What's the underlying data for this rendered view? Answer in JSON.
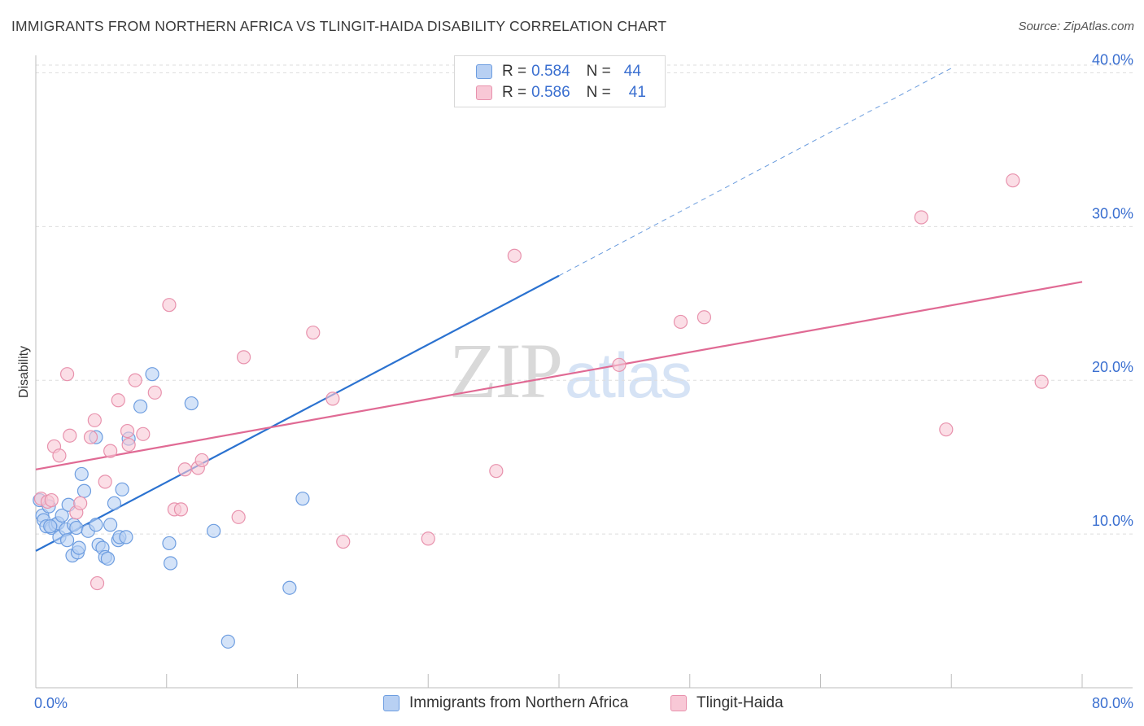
{
  "header": {
    "title": "IMMIGRANTS FROM NORTHERN AFRICA VS TLINGIT-HAIDA DISABILITY CORRELATION CHART",
    "source": "Source: ZipAtlas.com"
  },
  "watermark": {
    "zip": "ZIP",
    "atlas": "atlas"
  },
  "colors": {
    "blue_fill": "#b8d0f3",
    "blue_stroke": "#6d9de0",
    "blue_line": "#2b72d0",
    "pink_fill": "#f8c8d6",
    "pink_stroke": "#e892ad",
    "pink_line": "#e06a94",
    "axis_text": "#3a6fd0",
    "grid": "#dedede"
  },
  "legend": {
    "rows": [
      {
        "r_label": "R =",
        "r_value": "0.584",
        "n_label": "N =",
        "n_value": "44",
        "series": "blue"
      },
      {
        "r_label": "R =",
        "r_value": "0.586",
        "n_label": "N =",
        "n_value": "41",
        "series": "pink"
      }
    ]
  },
  "chart_data": {
    "type": "scatter",
    "title": "IMMIGRANTS FROM NORTHERN AFRICA VS TLINGIT-HAIDA DISABILITY CORRELATION CHART",
    "xlabel": "",
    "ylabel": "Disability",
    "xlim": [
      0,
      80
    ],
    "ylim": [
      0,
      40.5
    ],
    "x_tick_labels": [
      "0.0%",
      "80.0%"
    ],
    "y_ticks": [
      10,
      20,
      30,
      40
    ],
    "y_tick_labels": [
      "10.0%",
      "20.0%",
      "30.0%",
      "40.0%"
    ],
    "legend_position": "top-center",
    "series": [
      {
        "name": "Immigrants from Northern Africa",
        "color": "blue",
        "points": [
          [
            0.3,
            12.2
          ],
          [
            0.5,
            11.2
          ],
          [
            0.6,
            10.9
          ],
          [
            0.8,
            10.5
          ],
          [
            1.0,
            11.8
          ],
          [
            1.2,
            10.4
          ],
          [
            1.5,
            10.6
          ],
          [
            1.7,
            10.7
          ],
          [
            1.8,
            9.8
          ],
          [
            2.0,
            11.2
          ],
          [
            2.3,
            10.3
          ],
          [
            2.4,
            9.6
          ],
          [
            2.5,
            11.9
          ],
          [
            2.8,
            8.6
          ],
          [
            2.9,
            10.6
          ],
          [
            3.1,
            10.4
          ],
          [
            3.2,
            8.8
          ],
          [
            3.3,
            9.1
          ],
          [
            3.5,
            13.9
          ],
          [
            3.7,
            12.8
          ],
          [
            4.0,
            10.2
          ],
          [
            4.6,
            10.6
          ],
          [
            4.8,
            9.3
          ],
          [
            5.1,
            9.1
          ],
          [
            5.3,
            8.5
          ],
          [
            5.5,
            8.4
          ],
          [
            5.7,
            10.6
          ],
          [
            6.0,
            12.0
          ],
          [
            6.3,
            9.6
          ],
          [
            6.4,
            9.8
          ],
          [
            6.6,
            12.9
          ],
          [
            6.9,
            9.8
          ],
          [
            7.1,
            16.2
          ],
          [
            8.0,
            18.3
          ],
          [
            8.9,
            20.4
          ],
          [
            10.2,
            9.4
          ],
          [
            10.3,
            8.1
          ],
          [
            11.9,
            18.5
          ],
          [
            13.6,
            10.2
          ],
          [
            14.7,
            3.0
          ],
          [
            19.4,
            6.5
          ],
          [
            20.4,
            12.3
          ],
          [
            4.6,
            16.3
          ],
          [
            1.1,
            10.5
          ]
        ]
      },
      {
        "name": "Tlingit-Haida",
        "color": "pink",
        "points": [
          [
            0.4,
            12.3
          ],
          [
            0.9,
            12.1
          ],
          [
            1.2,
            12.2
          ],
          [
            1.4,
            15.7
          ],
          [
            1.8,
            15.1
          ],
          [
            2.4,
            20.4
          ],
          [
            2.6,
            16.4
          ],
          [
            3.1,
            11.4
          ],
          [
            3.4,
            12.0
          ],
          [
            4.2,
            16.3
          ],
          [
            4.5,
            17.4
          ],
          [
            4.7,
            6.8
          ],
          [
            5.3,
            13.4
          ],
          [
            5.7,
            15.4
          ],
          [
            6.3,
            18.7
          ],
          [
            7.0,
            16.7
          ],
          [
            7.1,
            15.8
          ],
          [
            7.6,
            20.0
          ],
          [
            8.2,
            16.5
          ],
          [
            9.1,
            19.2
          ],
          [
            10.2,
            24.9
          ],
          [
            10.6,
            11.6
          ],
          [
            11.1,
            11.6
          ],
          [
            11.4,
            14.2
          ],
          [
            12.4,
            14.3
          ],
          [
            12.7,
            14.8
          ],
          [
            15.5,
            11.1
          ],
          [
            15.9,
            21.5
          ],
          [
            21.2,
            23.1
          ],
          [
            22.7,
            18.8
          ],
          [
            23.5,
            9.5
          ],
          [
            30.0,
            9.7
          ],
          [
            35.2,
            14.1
          ],
          [
            36.6,
            28.1
          ],
          [
            44.6,
            21.0
          ],
          [
            49.3,
            23.8
          ],
          [
            51.1,
            24.1
          ],
          [
            67.7,
            30.6
          ],
          [
            69.6,
            16.8
          ],
          [
            74.7,
            33.0
          ],
          [
            76.9,
            19.9
          ]
        ]
      }
    ],
    "trend_lines": [
      {
        "series": "Immigrants from Northern Africa",
        "x0": 0,
        "y0": 8.9,
        "x1": 40,
        "y1": 26.8,
        "dashed_x_end": 70,
        "dashed_y_end": 40.3
      },
      {
        "series": "Tlingit-Haida",
        "x0": 0,
        "y0": 14.2,
        "x1": 80,
        "y1": 26.4
      }
    ]
  },
  "bottom_legend": {
    "items": [
      {
        "label": "Immigrants from Northern Africa",
        "series": "blue"
      },
      {
        "label": "Tlingit-Haida",
        "series": "pink"
      }
    ]
  }
}
